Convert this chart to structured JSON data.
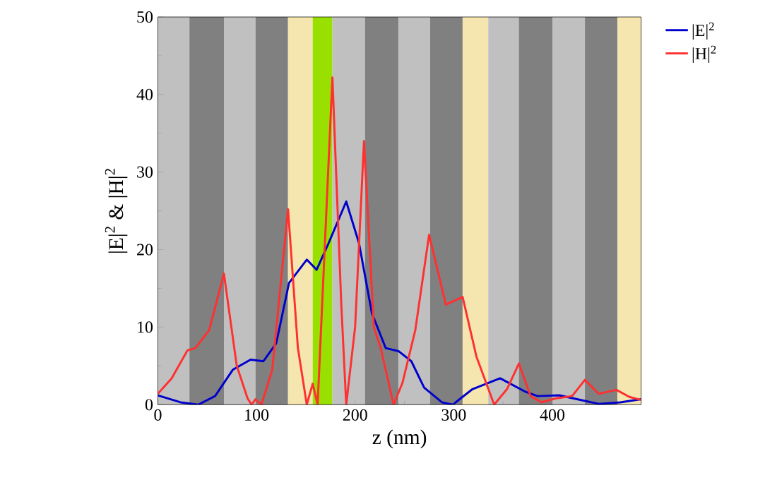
{
  "chart_data": {
    "type": "line",
    "xlabel": "z (nm)",
    "ylabel": "|E|$^{2}$ & |H|$^{2}$",
    "xlim": [
      0,
      490
    ],
    "ylim": [
      0,
      50
    ],
    "xticks": [
      0,
      100,
      200,
      300,
      400
    ],
    "yticks": [
      0,
      10,
      20,
      30,
      40,
      50
    ],
    "grid": false,
    "legend": "top right",
    "marker": "none",
    "line_style": "solid",
    "bands": [
      {
        "axis": "x",
        "from": 0,
        "to": 32,
        "color": "#c0c0c0"
      },
      {
        "axis": "x",
        "from": 32,
        "to": 67,
        "color": "#808080"
      },
      {
        "axis": "x",
        "from": 67,
        "to": 99,
        "color": "#c0c0c0"
      },
      {
        "axis": "x",
        "from": 99,
        "to": 132,
        "color": "#808080"
      },
      {
        "axis": "x",
        "from": 132,
        "to": 157,
        "color": "#f5e6b0"
      },
      {
        "axis": "x",
        "from": 157,
        "to": 177,
        "color": "#99e000"
      },
      {
        "axis": "x",
        "from": 177,
        "to": 210,
        "color": "#c0c0c0"
      },
      {
        "axis": "x",
        "from": 210,
        "to": 244,
        "color": "#808080"
      },
      {
        "axis": "x",
        "from": 244,
        "to": 276,
        "color": "#c0c0c0"
      },
      {
        "axis": "x",
        "from": 276,
        "to": 309,
        "color": "#808080"
      },
      {
        "axis": "x",
        "from": 309,
        "to": 335,
        "color": "#f5e6b0"
      },
      {
        "axis": "x",
        "from": 335,
        "to": 366,
        "color": "#c0c0c0"
      },
      {
        "axis": "x",
        "from": 366,
        "to": 400,
        "color": "#808080"
      },
      {
        "axis": "x",
        "from": 400,
        "to": 433,
        "color": "#c0c0c0"
      },
      {
        "axis": "x",
        "from": 433,
        "to": 466,
        "color": "#808080"
      },
      {
        "axis": "x",
        "from": 466,
        "to": 490,
        "color": "#f5e6b0"
      }
    ],
    "series": [
      {
        "name": "|E|$^{2}$",
        "color": "#0000cc",
        "x": [
          0,
          23,
          41,
          58,
          76,
          94,
          107,
          120,
          133,
          151,
          161,
          173,
          191,
          204,
          217,
          231,
          244,
          257,
          270,
          288,
          299,
          319,
          347,
          372,
          385,
          407,
          425,
          447,
          469,
          490
        ],
        "values": [
          1.2,
          0.3,
          0,
          1.1,
          4.5,
          5.8,
          5.6,
          7.9,
          15.7,
          18.7,
          17.4,
          20.8,
          26.2,
          20.8,
          11.8,
          7.3,
          6.9,
          5.6,
          2.2,
          0.3,
          0,
          2,
          3.4,
          1.7,
          1.1,
          1.2,
          0.7,
          0.1,
          0.3,
          0.7
        ]
      },
      {
        "name": "|H|$^{2}$",
        "color": "#ff3030",
        "x": [
          0,
          14,
          30,
          38,
          52,
          67,
          80,
          91,
          95,
          99,
          105,
          116,
          132,
          142,
          151,
          157,
          162,
          177,
          186,
          191,
          200,
          209,
          219,
          226,
          239,
          248,
          261,
          275,
          292,
          309,
          323,
          341,
          354,
          366,
          378,
          389,
          403,
          420,
          433,
          447,
          465,
          478,
          490
        ],
        "values": [
          1.4,
          3.4,
          7,
          7.3,
          9.6,
          16.9,
          5,
          0.8,
          0,
          0.7,
          0,
          4.5,
          25.2,
          7.3,
          0,
          2.7,
          0,
          42.2,
          12.9,
          0,
          10,
          34,
          10,
          7.3,
          0,
          2.8,
          9.6,
          21.9,
          12.9,
          13.9,
          6.2,
          0,
          2,
          5.3,
          1.1,
          0.3,
          0.8,
          1.1,
          3.2,
          1.4,
          1.9,
          1,
          0.6
        ]
      }
    ]
  }
}
